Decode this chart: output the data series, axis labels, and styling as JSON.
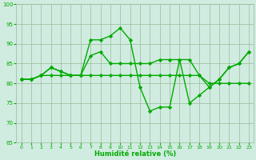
{
  "xlabel": "Humidité relative (%)",
  "x": [
    0,
    1,
    2,
    3,
    4,
    5,
    6,
    7,
    8,
    9,
    10,
    11,
    12,
    13,
    14,
    15,
    16,
    17,
    18,
    19,
    20,
    21,
    22,
    23
  ],
  "line1": [
    81,
    81,
    82,
    84,
    83,
    82,
    82,
    91,
    91,
    92,
    94,
    91,
    79,
    73,
    74,
    74,
    86,
    75,
    77,
    79,
    81,
    84,
    85,
    88
  ],
  "line2": [
    81,
    81,
    82,
    84,
    83,
    82,
    82,
    87,
    88,
    85,
    85,
    85,
    85,
    85,
    86,
    86,
    86,
    86,
    82,
    79,
    81,
    84,
    85,
    88
  ],
  "line3": [
    81,
    81,
    82,
    82,
    82,
    82,
    82,
    82,
    82,
    82,
    82,
    82,
    82,
    82,
    82,
    82,
    82,
    82,
    82,
    80,
    80,
    80,
    80,
    80
  ],
  "line_color": "#00aa00",
  "bg_color": "#d0ece0",
  "grid_color": "#99bb99",
  "ylim": [
    65,
    100
  ],
  "yticks": [
    65,
    70,
    75,
    80,
    85,
    90,
    95,
    100
  ],
  "xticks": [
    0,
    1,
    2,
    3,
    4,
    5,
    6,
    7,
    8,
    9,
    10,
    11,
    12,
    13,
    14,
    15,
    16,
    17,
    18,
    19,
    20,
    21,
    22,
    23
  ],
  "marker": "D",
  "marker_size": 2.2,
  "line_width": 1.0
}
